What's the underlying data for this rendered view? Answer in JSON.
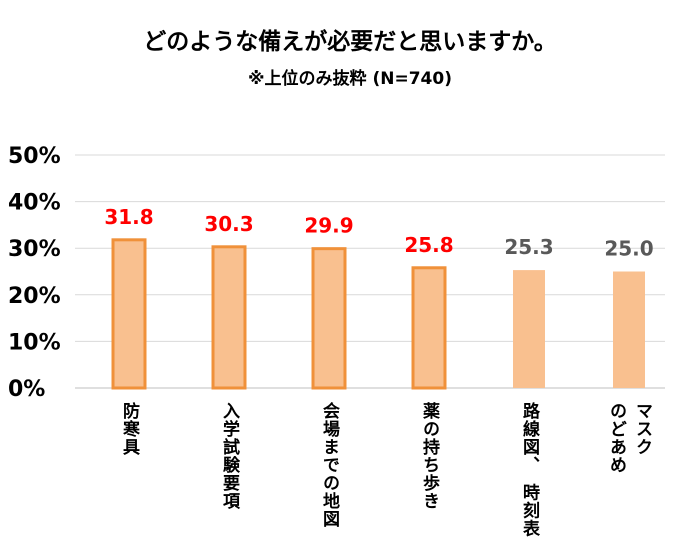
{
  "chart_data": {
    "type": "bar",
    "title": "どのような備えが必要だと思いますか。",
    "subtitle": "※上位のみ抜粋 (N=740)",
    "xlabel": "",
    "ylabel": "",
    "categories": [
      "防寒具",
      "入学試験要項",
      "会場までの地図",
      "薬の持ち歩き",
      "路線図、　時刻表",
      "マスク\nのどあめ"
    ],
    "values": [
      31.8,
      30.3,
      29.9,
      25.8,
      25.3,
      25.0
    ],
    "value_labels": [
      "31.8",
      "30.3",
      "29.9",
      "25.8",
      "25.3",
      "25.0"
    ],
    "highlighted": [
      true,
      true,
      true,
      true,
      false,
      false
    ],
    "ylim": [
      0,
      50
    ],
    "yticks": [
      "0%",
      "10%",
      "20%",
      "30%",
      "40%",
      "50%"
    ],
    "grid": true,
    "colors": {
      "bar_fill": "#F9C08F",
      "bar_border": "#F0913A",
      "highlight_label": "#FF0000",
      "normal_label": "#595959",
      "grid": "#D9D9D9"
    }
  }
}
